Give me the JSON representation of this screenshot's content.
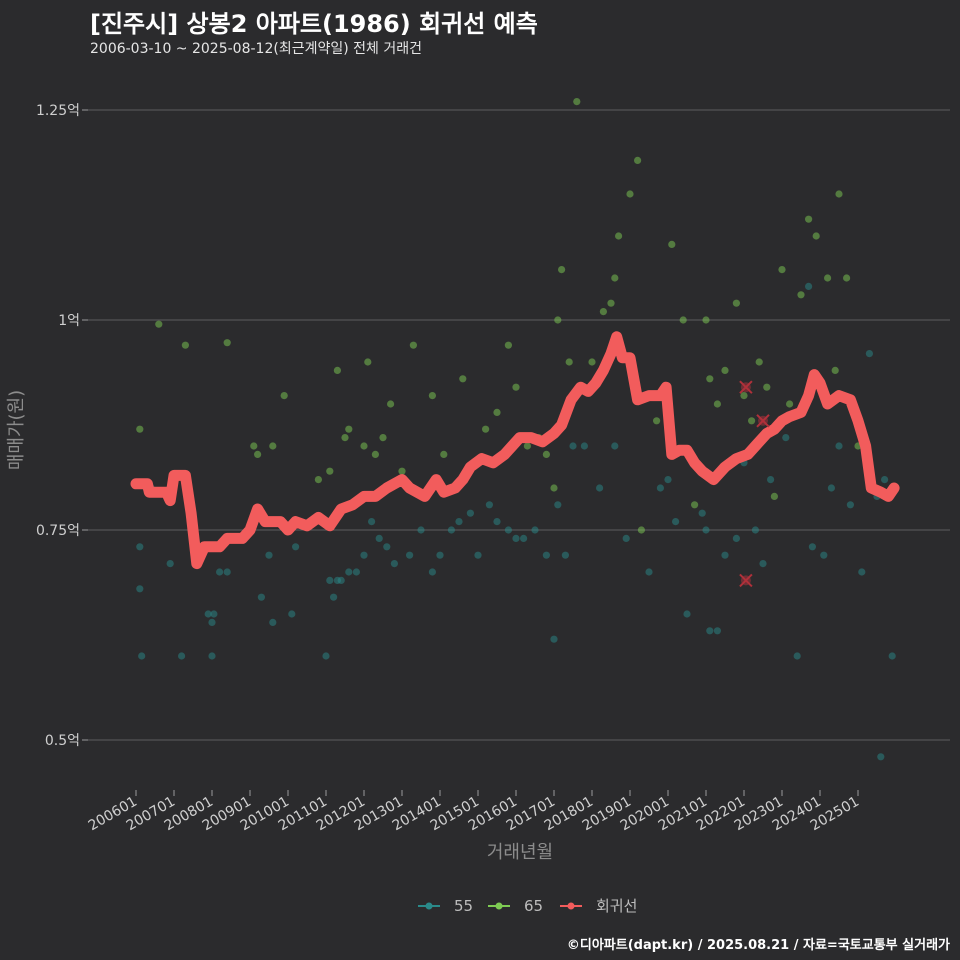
{
  "chart_data": {
    "type": "scatter",
    "title": "[진주시] 상봉2 아파트(1986) 회귀선 예측",
    "subtitle": "2006-03-10 ~ 2025-08-12(최근계약일) 전체 거래건",
    "xlabel": "거래년월",
    "ylabel": "매매가(원)",
    "ylim": [
      0.45,
      1.3
    ],
    "yticks": [
      {
        "value": 0.5,
        "label": "0.5억"
      },
      {
        "value": 0.75,
        "label": "0.75억"
      },
      {
        "value": 1.0,
        "label": "1억"
      },
      {
        "value": 1.25,
        "label": "1.25억"
      }
    ],
    "xlim": [
      2005.6,
      2026.2
    ],
    "xticks": [
      {
        "value": 2006.0,
        "label": "200601"
      },
      {
        "value": 2007.0,
        "label": "200701"
      },
      {
        "value": 2008.0,
        "label": "200801"
      },
      {
        "value": 2009.0,
        "label": "200901"
      },
      {
        "value": 2010.0,
        "label": "201001"
      },
      {
        "value": 2011.0,
        "label": "201101"
      },
      {
        "value": 2012.0,
        "label": "201201"
      },
      {
        "value": 2013.0,
        "label": "201301"
      },
      {
        "value": 2014.0,
        "label": "201401"
      },
      {
        "value": 2015.0,
        "label": "201501"
      },
      {
        "value": 2016.0,
        "label": "201601"
      },
      {
        "value": 2017.0,
        "label": "201701"
      },
      {
        "value": 2018.0,
        "label": "201801"
      },
      {
        "value": 2019.0,
        "label": "201901"
      },
      {
        "value": 2020.0,
        "label": "202001"
      },
      {
        "value": 2021.0,
        "label": "202101"
      },
      {
        "value": 2022.0,
        "label": "202201"
      },
      {
        "value": 2023.0,
        "label": "202301"
      },
      {
        "value": 2024.0,
        "label": "202401"
      },
      {
        "value": 2025.0,
        "label": "202501"
      }
    ],
    "legend_position": "bottom",
    "series": [
      {
        "name": "55",
        "color": "#2a8a8a",
        "points": [
          [
            2006.1,
            0.73
          ],
          [
            2006.1,
            0.68
          ],
          [
            2006.15,
            0.6
          ],
          [
            2006.4,
            0.8
          ],
          [
            2006.9,
            0.71
          ],
          [
            2007.2,
            0.6
          ],
          [
            2007.9,
            0.65
          ],
          [
            2008.0,
            0.64
          ],
          [
            2008.0,
            0.6
          ],
          [
            2008.05,
            0.65
          ],
          [
            2008.2,
            0.7
          ],
          [
            2008.4,
            0.7
          ],
          [
            2009.3,
            0.67
          ],
          [
            2009.5,
            0.72
          ],
          [
            2009.6,
            0.64
          ],
          [
            2010.1,
            0.65
          ],
          [
            2010.2,
            0.73
          ],
          [
            2011.0,
            0.6
          ],
          [
            2011.1,
            0.69
          ],
          [
            2011.2,
            0.67
          ],
          [
            2011.3,
            0.69
          ],
          [
            2011.4,
            0.69
          ],
          [
            2011.6,
            0.7
          ],
          [
            2011.8,
            0.7
          ],
          [
            2012.0,
            0.72
          ],
          [
            2012.2,
            0.76
          ],
          [
            2012.4,
            0.74
          ],
          [
            2012.6,
            0.73
          ],
          [
            2012.8,
            0.71
          ],
          [
            2013.2,
            0.72
          ],
          [
            2013.5,
            0.75
          ],
          [
            2013.8,
            0.7
          ],
          [
            2014.0,
            0.72
          ],
          [
            2014.3,
            0.75
          ],
          [
            2014.5,
            0.76
          ],
          [
            2014.8,
            0.77
          ],
          [
            2015.0,
            0.72
          ],
          [
            2015.3,
            0.78
          ],
          [
            2015.5,
            0.76
          ],
          [
            2015.8,
            0.75
          ],
          [
            2016.0,
            0.74
          ],
          [
            2016.2,
            0.74
          ],
          [
            2016.5,
            0.75
          ],
          [
            2016.8,
            0.72
          ],
          [
            2017.0,
            0.62
          ],
          [
            2017.1,
            0.78
          ],
          [
            2017.3,
            0.72
          ],
          [
            2017.5,
            0.85
          ],
          [
            2017.8,
            0.85
          ],
          [
            2018.2,
            0.8
          ],
          [
            2018.6,
            0.85
          ],
          [
            2018.9,
            0.74
          ],
          [
            2019.5,
            0.7
          ],
          [
            2019.8,
            0.8
          ],
          [
            2020.0,
            0.81
          ],
          [
            2020.2,
            0.76
          ],
          [
            2020.5,
            0.65
          ],
          [
            2020.9,
            0.77
          ],
          [
            2021.0,
            0.75
          ],
          [
            2021.1,
            0.63
          ],
          [
            2021.3,
            0.63
          ],
          [
            2021.5,
            0.72
          ],
          [
            2021.8,
            0.74
          ],
          [
            2022.0,
            0.83
          ],
          [
            2022.3,
            0.75
          ],
          [
            2022.5,
            0.71
          ],
          [
            2022.7,
            0.81
          ],
          [
            2023.1,
            0.86
          ],
          [
            2023.4,
            0.6
          ],
          [
            2023.7,
            1.04
          ],
          [
            2023.8,
            0.73
          ],
          [
            2024.1,
            0.72
          ],
          [
            2024.3,
            0.8
          ],
          [
            2024.5,
            0.85
          ],
          [
            2024.8,
            0.78
          ],
          [
            2025.1,
            0.7
          ],
          [
            2025.3,
            0.96
          ],
          [
            2025.5,
            0.79
          ],
          [
            2025.6,
            0.48
          ],
          [
            2025.7,
            0.81
          ],
          [
            2025.9,
            0.6
          ]
        ]
      },
      {
        "name": "65",
        "color": "#7ecb53",
        "points": [
          [
            2006.1,
            0.87
          ],
          [
            2006.6,
            0.995
          ],
          [
            2007.3,
            0.97
          ],
          [
            2008.4,
            0.973
          ],
          [
            2009.1,
            0.85
          ],
          [
            2009.2,
            0.84
          ],
          [
            2009.6,
            0.85
          ],
          [
            2009.9,
            0.91
          ],
          [
            2010.8,
            0.81
          ],
          [
            2011.1,
            0.82
          ],
          [
            2011.3,
            0.94
          ],
          [
            2011.5,
            0.86
          ],
          [
            2011.6,
            0.87
          ],
          [
            2012.0,
            0.85
          ],
          [
            2012.1,
            0.95
          ],
          [
            2012.3,
            0.84
          ],
          [
            2012.5,
            0.86
          ],
          [
            2012.7,
            0.9
          ],
          [
            2013.0,
            0.82
          ],
          [
            2013.3,
            0.97
          ],
          [
            2013.8,
            0.91
          ],
          [
            2014.1,
            0.84
          ],
          [
            2014.6,
            0.93
          ],
          [
            2015.2,
            0.87
          ],
          [
            2015.5,
            0.89
          ],
          [
            2015.8,
            0.97
          ],
          [
            2016.0,
            0.92
          ],
          [
            2016.3,
            0.85
          ],
          [
            2016.6,
            0.86
          ],
          [
            2016.8,
            0.84
          ],
          [
            2017.0,
            0.8
          ],
          [
            2017.1,
            1.0
          ],
          [
            2017.2,
            1.06
          ],
          [
            2017.4,
            0.95
          ],
          [
            2017.6,
            1.26
          ],
          [
            2018.0,
            0.95
          ],
          [
            2018.3,
            1.01
          ],
          [
            2018.5,
            1.02
          ],
          [
            2018.6,
            1.05
          ],
          [
            2018.7,
            1.1
          ],
          [
            2019.0,
            1.15
          ],
          [
            2019.2,
            1.19
          ],
          [
            2019.3,
            0.75
          ],
          [
            2019.7,
            0.88
          ],
          [
            2020.1,
            1.09
          ],
          [
            2020.4,
            1.0
          ],
          [
            2020.7,
            0.78
          ],
          [
            2021.0,
            1.0
          ],
          [
            2021.1,
            0.93
          ],
          [
            2021.3,
            0.9
          ],
          [
            2021.5,
            0.94
          ],
          [
            2021.8,
            1.02
          ],
          [
            2022.0,
            0.91
          ],
          [
            2022.2,
            0.88
          ],
          [
            2022.4,
            0.95
          ],
          [
            2022.6,
            0.92
          ],
          [
            2022.8,
            0.79
          ],
          [
            2023.0,
            1.06
          ],
          [
            2023.2,
            0.9
          ],
          [
            2023.5,
            1.03
          ],
          [
            2023.7,
            1.12
          ],
          [
            2023.9,
            1.1
          ],
          [
            2024.2,
            1.05
          ],
          [
            2024.4,
            0.94
          ],
          [
            2024.5,
            1.15
          ],
          [
            2024.7,
            1.05
          ],
          [
            2025.0,
            0.85
          ]
        ]
      },
      {
        "name": "회귀선",
        "color": "#f25c5c",
        "points": [
          [
            2006.0,
            0.805
          ],
          [
            2006.3,
            0.805
          ],
          [
            2006.35,
            0.795
          ],
          [
            2006.8,
            0.795
          ],
          [
            2006.9,
            0.785
          ],
          [
            2007.0,
            0.815
          ],
          [
            2007.3,
            0.815
          ],
          [
            2007.45,
            0.77
          ],
          [
            2007.6,
            0.71
          ],
          [
            2007.8,
            0.73
          ],
          [
            2008.2,
            0.73
          ],
          [
            2008.4,
            0.74
          ],
          [
            2008.8,
            0.74
          ],
          [
            2009.0,
            0.75
          ],
          [
            2009.2,
            0.775
          ],
          [
            2009.4,
            0.76
          ],
          [
            2009.8,
            0.76
          ],
          [
            2010.0,
            0.75
          ],
          [
            2010.2,
            0.76
          ],
          [
            2010.5,
            0.755
          ],
          [
            2010.8,
            0.765
          ],
          [
            2011.1,
            0.755
          ],
          [
            2011.4,
            0.775
          ],
          [
            2011.7,
            0.78
          ],
          [
            2012.0,
            0.79
          ],
          [
            2012.3,
            0.79
          ],
          [
            2012.6,
            0.8
          ],
          [
            2013.0,
            0.81
          ],
          [
            2013.2,
            0.8
          ],
          [
            2013.6,
            0.79
          ],
          [
            2013.9,
            0.81
          ],
          [
            2014.1,
            0.795
          ],
          [
            2014.4,
            0.8
          ],
          [
            2014.6,
            0.81
          ],
          [
            2014.8,
            0.825
          ],
          [
            2015.1,
            0.835
          ],
          [
            2015.4,
            0.83
          ],
          [
            2015.7,
            0.84
          ],
          [
            2015.9,
            0.85
          ],
          [
            2016.1,
            0.86
          ],
          [
            2016.4,
            0.86
          ],
          [
            2016.7,
            0.855
          ],
          [
            2017.0,
            0.865
          ],
          [
            2017.2,
            0.875
          ],
          [
            2017.45,
            0.905
          ],
          [
            2017.7,
            0.92
          ],
          [
            2017.9,
            0.915
          ],
          [
            2018.1,
            0.925
          ],
          [
            2018.3,
            0.94
          ],
          [
            2018.5,
            0.96
          ],
          [
            2018.65,
            0.98
          ],
          [
            2018.8,
            0.955
          ],
          [
            2019.0,
            0.955
          ],
          [
            2019.2,
            0.905
          ],
          [
            2019.5,
            0.91
          ],
          [
            2019.8,
            0.91
          ],
          [
            2019.95,
            0.92
          ],
          [
            2020.1,
            0.84
          ],
          [
            2020.3,
            0.845
          ],
          [
            2020.5,
            0.845
          ],
          [
            2020.7,
            0.83
          ],
          [
            2020.9,
            0.82
          ],
          [
            2021.2,
            0.81
          ],
          [
            2021.5,
            0.825
          ],
          [
            2021.8,
            0.835
          ],
          [
            2022.1,
            0.84
          ],
          [
            2022.3,
            0.85
          ],
          [
            2022.6,
            0.865
          ],
          [
            2022.8,
            0.87
          ],
          [
            2023.0,
            0.88
          ],
          [
            2023.2,
            0.885
          ],
          [
            2023.5,
            0.89
          ],
          [
            2023.7,
            0.91
          ],
          [
            2023.85,
            0.935
          ],
          [
            2024.0,
            0.925
          ],
          [
            2024.2,
            0.9
          ],
          [
            2024.5,
            0.91
          ],
          [
            2024.8,
            0.905
          ],
          [
            2025.0,
            0.88
          ],
          [
            2025.2,
            0.85
          ],
          [
            2025.35,
            0.8
          ],
          [
            2025.6,
            0.795
          ],
          [
            2025.8,
            0.79
          ],
          [
            2025.95,
            0.8
          ]
        ]
      }
    ],
    "annotations": [
      {
        "type": "x-marker",
        "x": 2022.05,
        "y": 0.92
      },
      {
        "type": "x-marker",
        "x": 2022.5,
        "y": 0.88
      },
      {
        "type": "x-marker",
        "x": 2022.05,
        "y": 0.69
      }
    ]
  },
  "footer": {
    "credit": "©디아파트(dapt.kr) / 2025.08.21 / 자료=국토교통부 실거래가"
  }
}
